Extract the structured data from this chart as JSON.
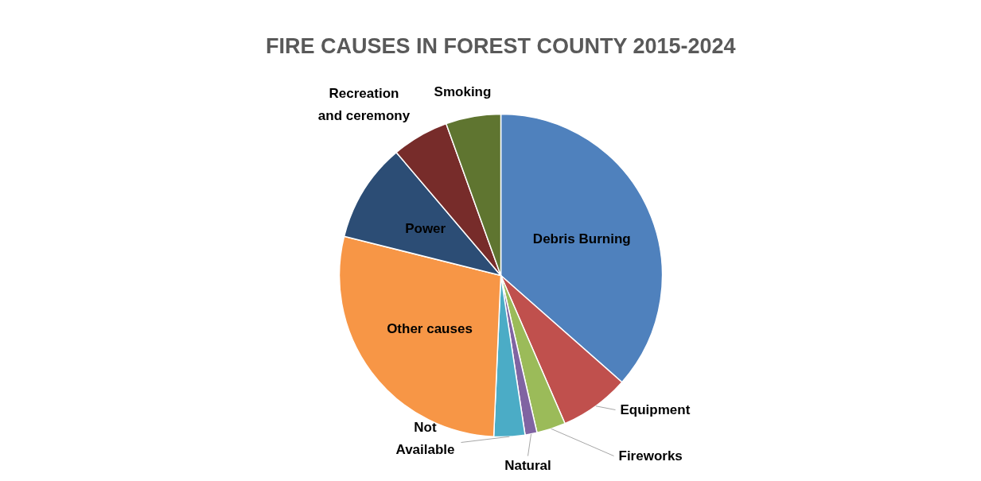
{
  "chart_data": {
    "type": "pie",
    "title": "FIRE CAUSES IN FOREST COUNTY 2015-2024",
    "categories": [
      "Debris Burning",
      "Equipment",
      "Fireworks",
      "Natural",
      "Not Available",
      "Other causes",
      "Power",
      "Recreation and ceremony",
      "Smoking"
    ],
    "values": [
      36.5,
      7.0,
      2.9,
      1.2,
      3.1,
      28.2,
      9.9,
      5.7,
      5.5
    ],
    "colors": [
      "#4f81bd",
      "#c0504d",
      "#9bbb59",
      "#8064a2",
      "#4bacc6",
      "#f79646",
      "#2c4d75",
      "#772c2a",
      "#5f7530"
    ]
  }
}
